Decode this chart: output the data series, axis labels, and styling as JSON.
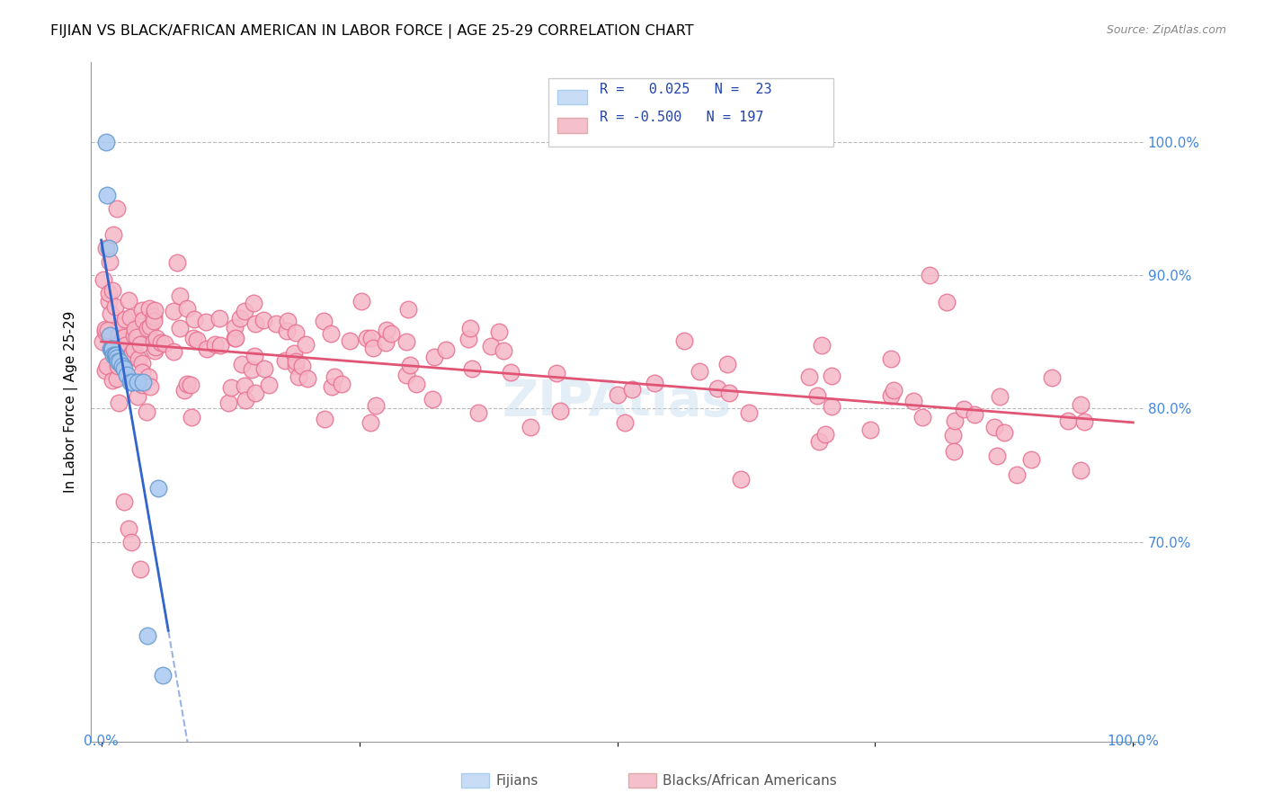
{
  "title": "FIJIAN VS BLACK/AFRICAN AMERICAN IN LABOR FORCE | AGE 25-29 CORRELATION CHART",
  "source": "Source: ZipAtlas.com",
  "ylabel": "In Labor Force | Age 25-29",
  "ytick_labels": [
    "100.0%",
    "90.0%",
    "80.0%",
    "70.0%"
  ],
  "ytick_values": [
    1.0,
    0.9,
    0.8,
    0.7
  ],
  "xlim": [
    0.0,
    1.0
  ],
  "ylim": [
    0.55,
    1.06
  ],
  "fijian_color": "#a8c8f0",
  "fijian_edge": "#6699cc",
  "fijian_line_color": "#3366cc",
  "fijian_R": 0.025,
  "fijian_N": 23,
  "black_color": "#f5b8c8",
  "black_edge": "#e87090",
  "black_line_color": "#e05575",
  "black_R": -0.5,
  "black_N": 197,
  "watermark": "ZIPAtlas",
  "legend_box_color_fijian": "#c8ddf5",
  "legend_box_color_black": "#f5c0cc",
  "legend_text_color": "#2244aa"
}
